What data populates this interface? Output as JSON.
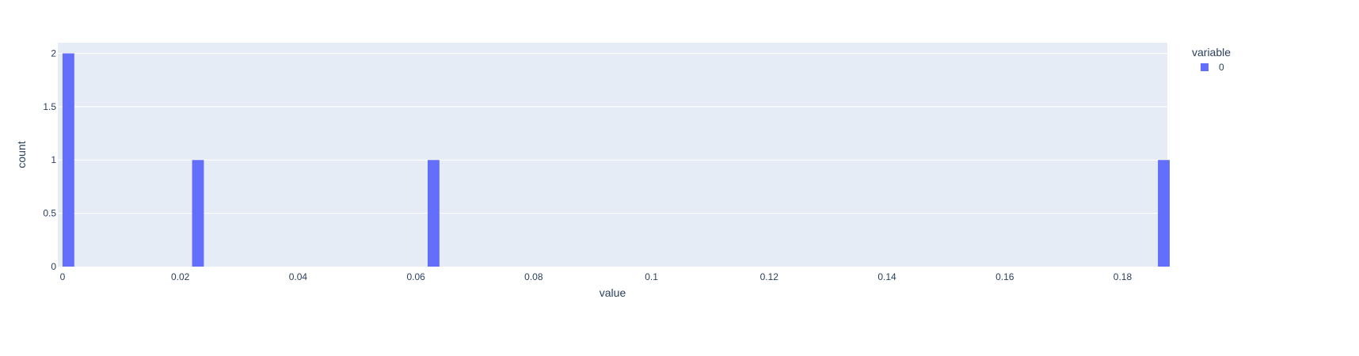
{
  "chart_data": {
    "type": "bar",
    "xlabel": "value",
    "ylabel": "count",
    "xlim": [
      -0.0008,
      0.1876
    ],
    "ylim": [
      0,
      2.1
    ],
    "bin_width": 0.002,
    "x_ticks": [
      0,
      0.02,
      0.04,
      0.06,
      0.08,
      0.1,
      0.12,
      0.14,
      0.16,
      0.18
    ],
    "x_tick_labels": [
      "0",
      "0.02",
      "0.04",
      "0.06",
      "0.08",
      "0.1",
      "0.12",
      "0.14",
      "0.16",
      "0.18"
    ],
    "y_ticks": [
      0,
      0.5,
      1,
      1.5,
      2
    ],
    "y_tick_labels": [
      "0",
      "0.5",
      "1",
      "1.5",
      "2"
    ],
    "grid": true,
    "legend": {
      "title": "variable",
      "placement": "top-right",
      "entries": [
        {
          "name": "0",
          "color": "#636efa"
        }
      ]
    },
    "series": [
      {
        "name": "0",
        "color": "#636efa",
        "bins": [
          {
            "x0": 0.0,
            "x1": 0.002,
            "count": 2
          },
          {
            "x0": 0.022,
            "x1": 0.024,
            "count": 1
          },
          {
            "x0": 0.062,
            "x1": 0.064,
            "count": 1
          },
          {
            "x0": 0.186,
            "x1": 0.188,
            "count": 1
          }
        ]
      }
    ]
  },
  "colors": {
    "plot_background": "#e5ecf6",
    "gridline": "#ffffff",
    "text": "#2a3f5f",
    "bar": "#636efa"
  }
}
